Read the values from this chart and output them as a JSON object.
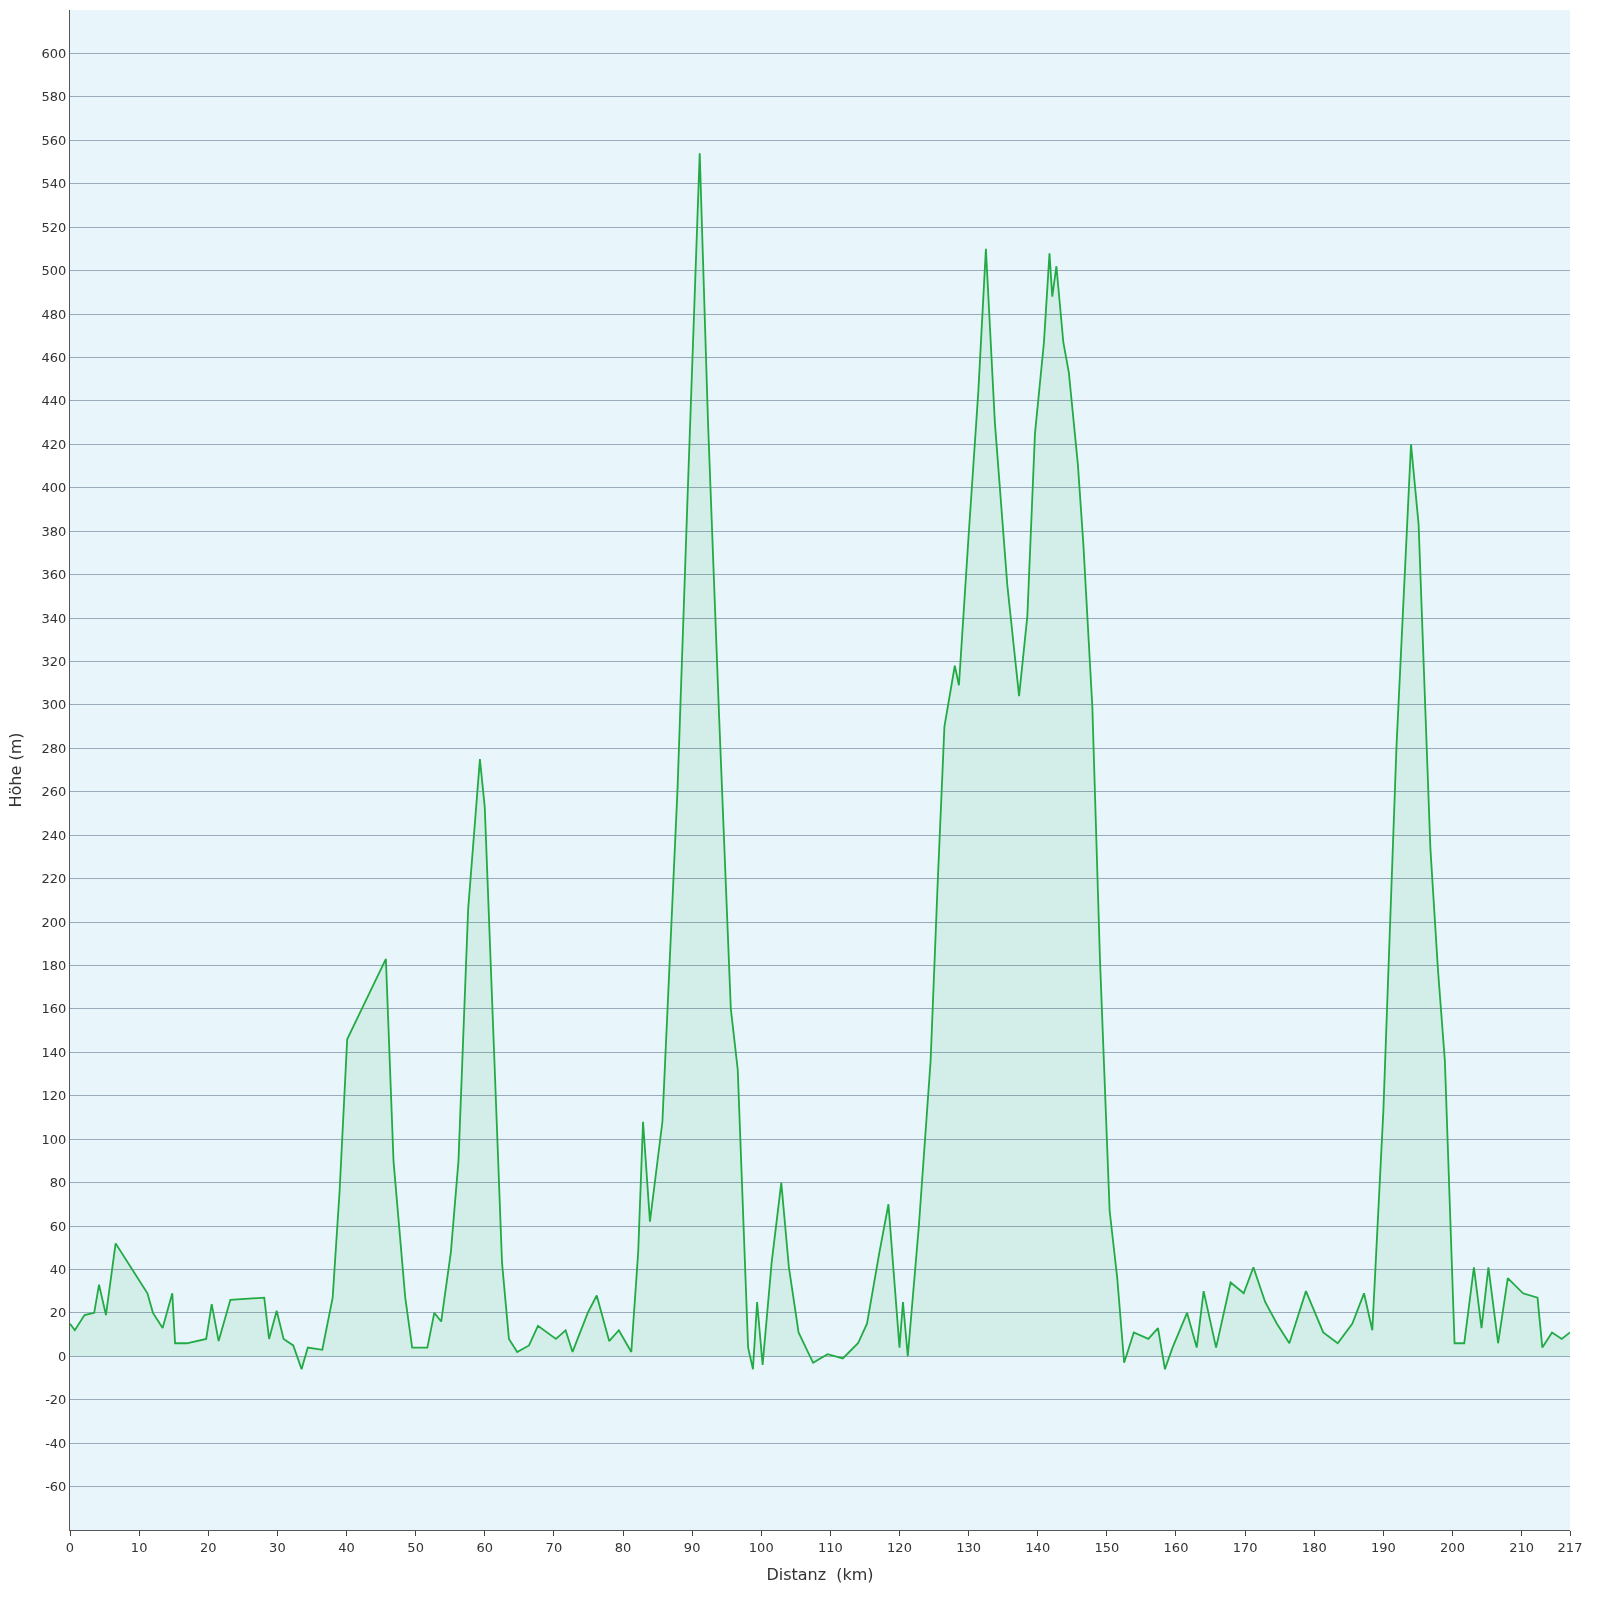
{
  "chart_data": {
    "type": "area",
    "xlabel": "Distanz  (km)",
    "ylabel": "Höhe (m)",
    "x": [
      0,
      0.7,
      2.1,
      3.5,
      4.2,
      5.2,
      6.6,
      11.2,
      12,
      13.4,
      14.8,
      15.2,
      16.9,
      19.7,
      20.5,
      21.5,
      23.2,
      28.1,
      28.8,
      29.9,
      30.9,
      32.3,
      33.5,
      34.4,
      36.5,
      38,
      39,
      40.1,
      45.7,
      46.8,
      48.5,
      49.5,
      51.7,
      52.7,
      53.7,
      55.1,
      56.2,
      57.6,
      59.3,
      60,
      61.4,
      62.5,
      63.5,
      64.7,
      66.4,
      67.7,
      70.3,
      71.7,
      72.7,
      74.9,
      76.2,
      78,
      79.4,
      81.2,
      82.2,
      82.9,
      83.9,
      85.7,
      87.9,
      89.3,
      91.1,
      92.3,
      93.9,
      95.6,
      96.6,
      98.1,
      98.8,
      99.4,
      100.2,
      101.5,
      102.9,
      104,
      105.4,
      107.5,
      109.6,
      111.8,
      114,
      115.3,
      117.1,
      118.4,
      120,
      120.5,
      121.2,
      122.8,
      124.5,
      125.5,
      126.5,
      128,
      128.6,
      130,
      131.4,
      132.5,
      133.8,
      135.6,
      137.3,
      138.5,
      139.6,
      140.9,
      141.7,
      142.1,
      142.7,
      143.7,
      144.5,
      145.8,
      146.6,
      147.9,
      149,
      150.4,
      151.5,
      152.5,
      153.9,
      156,
      157.4,
      158.4,
      159.5,
      161.6,
      163,
      164,
      165.8,
      167.9,
      169.8,
      171.2,
      172.9,
      174.6,
      176.4,
      178.8,
      181.3,
      183.4,
      185.5,
      187.2,
      188.4,
      190,
      191.9,
      194,
      195.1,
      196.8,
      197.9,
      198.9,
      200.3,
      201.7,
      203.1,
      204.2,
      205.2,
      206.6,
      208,
      210.2,
      212.3,
      213,
      214.4,
      215.8,
      217
    ],
    "series": [
      {
        "color": "#22aa44",
        "values": [
          15,
          12,
          19,
          20,
          33,
          19,
          52,
          29,
          20,
          13,
          29,
          6,
          6,
          8,
          24,
          7,
          26,
          27,
          8,
          21,
          8,
          5,
          -6,
          4,
          3,
          27,
          76,
          146,
          183,
          90,
          27,
          4,
          4,
          20,
          16,
          48,
          90,
          206,
          275,
          253,
          136,
          43,
          8,
          2,
          5,
          14,
          8,
          12,
          2,
          20,
          28,
          7,
          12,
          2,
          48,
          108,
          62,
          108,
          262,
          392,
          554,
          430,
          295,
          160,
          132,
          4,
          -6,
          25,
          -4,
          43,
          80,
          41,
          11,
          -3,
          1,
          -1,
          6,
          15,
          48,
          70,
          4,
          25,
          0,
          60,
          136,
          216,
          290,
          318,
          309,
          378,
          444,
          510,
          430,
          355,
          304,
          341,
          425,
          467,
          508,
          488,
          502,
          467,
          453,
          411,
          374,
          299,
          183,
          67,
          36,
          -3,
          11,
          8,
          13,
          -6,
          4,
          20,
          4,
          30,
          4,
          34,
          29,
          41,
          25,
          15,
          6,
          30,
          11,
          6,
          15,
          29,
          12,
          113,
          281,
          420,
          383,
          234,
          178,
          136,
          6,
          6,
          41,
          13,
          41,
          6,
          36,
          29,
          27,
          4,
          11,
          8,
          11
        ]
      }
    ],
    "xlim": [
      0,
      217
    ],
    "xticks": [
      0,
      10,
      20,
      30,
      40,
      50,
      60,
      70,
      80,
      90,
      100,
      110,
      120,
      130,
      140,
      150,
      160,
      170,
      180,
      190,
      200,
      210,
      217
    ],
    "ylim": [
      -80,
      620
    ],
    "yticks": [
      -60,
      -40,
      -20,
      0,
      20,
      40,
      60,
      80,
      100,
      120,
      140,
      160,
      180,
      200,
      220,
      240,
      260,
      280,
      300,
      320,
      340,
      360,
      380,
      400,
      420,
      440,
      460,
      480,
      500,
      520,
      540,
      560,
      580,
      600
    ],
    "grid": "y",
    "legend": false
  }
}
